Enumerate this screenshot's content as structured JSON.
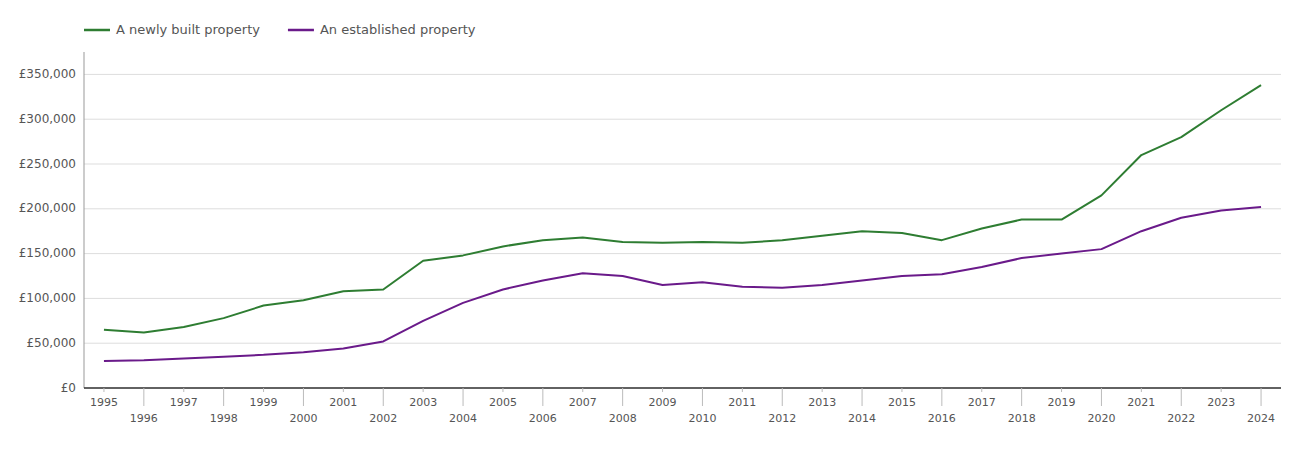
{
  "chart_data": {
    "type": "line",
    "x": [
      1995,
      1996,
      1997,
      1998,
      1999,
      2000,
      2001,
      2002,
      2003,
      2004,
      2005,
      2006,
      2007,
      2008,
      2009,
      2010,
      2011,
      2012,
      2013,
      2014,
      2015,
      2016,
      2017,
      2018,
      2019,
      2020,
      2021,
      2022,
      2023,
      2024
    ],
    "series": [
      {
        "name": "A newly built property",
        "color": "#2e7d32",
        "values": [
          65000,
          62000,
          68000,
          78000,
          92000,
          98000,
          108000,
          110000,
          142000,
          148000,
          158000,
          165000,
          168000,
          163000,
          162000,
          163000,
          162000,
          165000,
          170000,
          175000,
          173000,
          165000,
          178000,
          188000,
          188000,
          215000,
          260000,
          280000,
          310000,
          338000
        ]
      },
      {
        "name": "An established property",
        "color": "#6a1a8a",
        "values": [
          30000,
          31000,
          33000,
          35000,
          37000,
          40000,
          44000,
          52000,
          75000,
          95000,
          110000,
          120000,
          128000,
          125000,
          115000,
          118000,
          113000,
          112000,
          115000,
          120000,
          125000,
          127000,
          135000,
          145000,
          150000,
          155000,
          175000,
          190000,
          198000,
          202000
        ]
      }
    ],
    "xlim": [
      1994.5,
      2024.5
    ],
    "xticks": [
      1995,
      1996,
      1997,
      1998,
      1999,
      2000,
      2001,
      2002,
      2003,
      2004,
      2005,
      2006,
      2007,
      2008,
      2009,
      2010,
      2011,
      2012,
      2013,
      2014,
      2015,
      2016,
      2017,
      2018,
      2019,
      2020,
      2021,
      2022,
      2023,
      2024
    ],
    "ylim": [
      0,
      375000
    ],
    "yticks": [
      {
        "value": 0,
        "label": "£0"
      },
      {
        "value": 50000,
        "label": "£50,000"
      },
      {
        "value": 100000,
        "label": "£100,000"
      },
      {
        "value": 150000,
        "label": "£150,000"
      },
      {
        "value": 200000,
        "label": "£200,000"
      },
      {
        "value": 250000,
        "label": "£250,000"
      },
      {
        "value": 300000,
        "label": "£300,000"
      },
      {
        "value": 350000,
        "label": "£350,000"
      }
    ],
    "grid": true,
    "legend": "upper left"
  }
}
